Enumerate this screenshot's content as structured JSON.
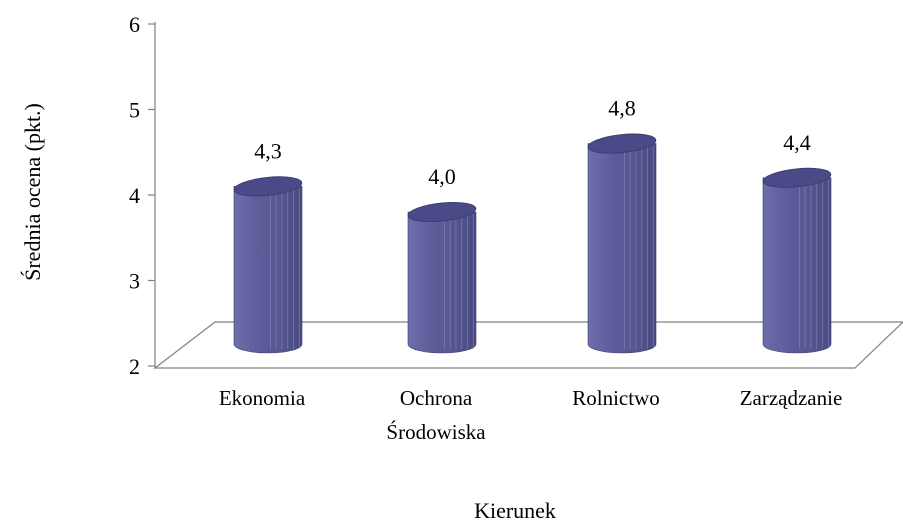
{
  "chart_data": {
    "type": "bar",
    "style": "3d-cylinder",
    "title": "",
    "xlabel": "Kierunek",
    "ylabel": "Średnia ocena (pkt.)",
    "ylim": [
      2,
      6
    ],
    "yticks": [
      "2",
      "3",
      "4",
      "5",
      "6"
    ],
    "categories": [
      [
        "Ekonomia"
      ],
      [
        "Ochrona",
        "Środowiska"
      ],
      [
        "Rolnictwo"
      ],
      [
        "Zarządzanie"
      ]
    ],
    "values": [
      4.3,
      4.0,
      4.8,
      4.4
    ],
    "data_labels": [
      "4,3",
      "4,0",
      "4,8",
      "4,4"
    ],
    "bar_color": "#5b5b9a",
    "bar_top_color": "#4a4a88",
    "grid": false,
    "legend": "none"
  }
}
